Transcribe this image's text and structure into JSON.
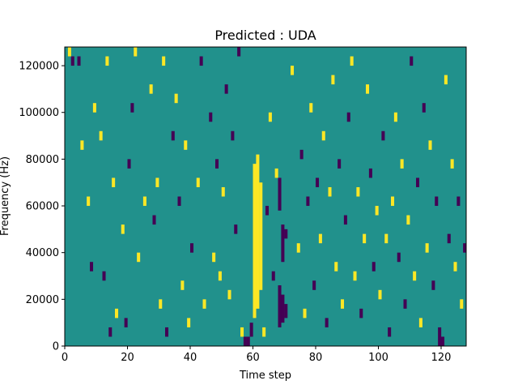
{
  "chart_data": {
    "type": "heatmap",
    "title": "Predicted : UDA",
    "xlabel": "Time step",
    "ylabel": "Frequency (Hz)",
    "xlim": [
      0,
      128
    ],
    "ylim": [
      0,
      128000
    ],
    "x_ticks": [
      {
        "value": 0,
        "label": "0"
      },
      {
        "value": 20,
        "label": "20"
      },
      {
        "value": 40,
        "label": "40"
      },
      {
        "value": 60,
        "label": "60"
      },
      {
        "value": 80,
        "label": "80"
      },
      {
        "value": 100,
        "label": "100"
      },
      {
        "value": 120,
        "label": "120"
      }
    ],
    "y_ticks": [
      {
        "value": 0,
        "label": "0"
      },
      {
        "value": 20000,
        "label": "20000"
      },
      {
        "value": 40000,
        "label": "40000"
      },
      {
        "value": 60000,
        "label": "60000"
      },
      {
        "value": 80000,
        "label": "80000"
      },
      {
        "value": 100000,
        "label": "100000"
      },
      {
        "value": 120000,
        "label": "120000"
      }
    ],
    "grid": false,
    "colormap": "viridis",
    "colors": {
      "background": "#21918c",
      "high": "#fde725",
      "low": "#440154"
    },
    "grid_shape": {
      "time_steps": 128,
      "frequency_bins": 128
    },
    "background_value": 0,
    "cells": [
      {
        "t": 60,
        "f0": 12,
        "f1": 78,
        "v": 1
      },
      {
        "t": 61,
        "f0": 16,
        "f1": 82,
        "v": 1
      },
      {
        "t": 62,
        "f0": 24,
        "f1": 70,
        "v": 1
      },
      {
        "t": 63,
        "f0": 4,
        "f1": 8,
        "v": 1
      },
      {
        "t": 56,
        "f0": 4,
        "f1": 8,
        "v": 1
      },
      {
        "t": 58,
        "f0": 0,
        "f1": 4,
        "v": -1
      },
      {
        "t": 59,
        "f0": 4,
        "f1": 10,
        "v": -1
      },
      {
        "t": 57,
        "f0": 0,
        "f1": 4,
        "v": -1
      },
      {
        "t": 68,
        "f0": 8,
        "f1": 26,
        "v": -1
      },
      {
        "t": 69,
        "f0": 10,
        "f1": 22,
        "v": -1
      },
      {
        "t": 70,
        "f0": 12,
        "f1": 18,
        "v": -1
      },
      {
        "t": 68,
        "f0": 58,
        "f1": 72,
        "v": -1
      },
      {
        "t": 69,
        "f0": 36,
        "f1": 52,
        "v": -1
      },
      {
        "t": 70,
        "f0": 46,
        "f1": 50,
        "v": -1
      },
      {
        "t": 1,
        "f0": 124,
        "f1": 128,
        "v": 1
      },
      {
        "t": 2,
        "f0": 120,
        "f1": 124,
        "v": -1
      },
      {
        "t": 4,
        "f0": 120,
        "f1": 124,
        "v": -1
      },
      {
        "t": 5,
        "f0": 84,
        "f1": 88,
        "v": 1
      },
      {
        "t": 7,
        "f0": 60,
        "f1": 64,
        "v": 1
      },
      {
        "t": 8,
        "f0": 32,
        "f1": 36,
        "v": -1
      },
      {
        "t": 9,
        "f0": 100,
        "f1": 104,
        "v": 1
      },
      {
        "t": 11,
        "f0": 88,
        "f1": 92,
        "v": 1
      },
      {
        "t": 12,
        "f0": 28,
        "f1": 32,
        "v": -1
      },
      {
        "t": 13,
        "f0": 120,
        "f1": 124,
        "v": 1
      },
      {
        "t": 14,
        "f0": 4,
        "f1": 8,
        "v": -1
      },
      {
        "t": 15,
        "f0": 68,
        "f1": 72,
        "v": 1
      },
      {
        "t": 16,
        "f0": 12,
        "f1": 16,
        "v": 1
      },
      {
        "t": 18,
        "f0": 48,
        "f1": 52,
        "v": 1
      },
      {
        "t": 19,
        "f0": 8,
        "f1": 12,
        "v": -1
      },
      {
        "t": 20,
        "f0": 76,
        "f1": 80,
        "v": -1
      },
      {
        "t": 21,
        "f0": 100,
        "f1": 104,
        "v": -1
      },
      {
        "t": 22,
        "f0": 124,
        "f1": 128,
        "v": 1
      },
      {
        "t": 23,
        "f0": 36,
        "f1": 40,
        "v": 1
      },
      {
        "t": 25,
        "f0": 60,
        "f1": 64,
        "v": 1
      },
      {
        "t": 27,
        "f0": 108,
        "f1": 112,
        "v": 1
      },
      {
        "t": 28,
        "f0": 52,
        "f1": 56,
        "v": -1
      },
      {
        "t": 29,
        "f0": 68,
        "f1": 72,
        "v": 1
      },
      {
        "t": 30,
        "f0": 16,
        "f1": 20,
        "v": 1
      },
      {
        "t": 31,
        "f0": 120,
        "f1": 124,
        "v": 1
      },
      {
        "t": 32,
        "f0": 4,
        "f1": 8,
        "v": -1
      },
      {
        "t": 34,
        "f0": 88,
        "f1": 92,
        "v": -1
      },
      {
        "t": 35,
        "f0": 104,
        "f1": 108,
        "v": 1
      },
      {
        "t": 36,
        "f0": 60,
        "f1": 64,
        "v": -1
      },
      {
        "t": 37,
        "f0": 24,
        "f1": 28,
        "v": 1
      },
      {
        "t": 38,
        "f0": 84,
        "f1": 88,
        "v": 1
      },
      {
        "t": 39,
        "f0": 8,
        "f1": 12,
        "v": 1
      },
      {
        "t": 40,
        "f0": 40,
        "f1": 44,
        "v": -1
      },
      {
        "t": 42,
        "f0": 68,
        "f1": 72,
        "v": 1
      },
      {
        "t": 43,
        "f0": 120,
        "f1": 124,
        "v": -1
      },
      {
        "t": 44,
        "f0": 16,
        "f1": 20,
        "v": 1
      },
      {
        "t": 46,
        "f0": 96,
        "f1": 100,
        "v": -1
      },
      {
        "t": 47,
        "f0": 36,
        "f1": 40,
        "v": 1
      },
      {
        "t": 48,
        "f0": 76,
        "f1": 80,
        "v": -1
      },
      {
        "t": 49,
        "f0": 28,
        "f1": 32,
        "v": 1
      },
      {
        "t": 50,
        "f0": 64,
        "f1": 68,
        "v": 1
      },
      {
        "t": 51,
        "f0": 108,
        "f1": 112,
        "v": -1
      },
      {
        "t": 52,
        "f0": 20,
        "f1": 24,
        "v": 1
      },
      {
        "t": 53,
        "f0": 88,
        "f1": 92,
        "v": -1
      },
      {
        "t": 54,
        "f0": 48,
        "f1": 52,
        "v": -1
      },
      {
        "t": 55,
        "f0": 124,
        "f1": 128,
        "v": -1
      },
      {
        "t": 64,
        "f0": 56,
        "f1": 60,
        "v": -1
      },
      {
        "t": 65,
        "f0": 96,
        "f1": 100,
        "v": 1
      },
      {
        "t": 66,
        "f0": 28,
        "f1": 32,
        "v": -1
      },
      {
        "t": 67,
        "f0": 72,
        "f1": 76,
        "v": 1
      },
      {
        "t": 72,
        "f0": 116,
        "f1": 120,
        "v": 1
      },
      {
        "t": 74,
        "f0": 40,
        "f1": 44,
        "v": 1
      },
      {
        "t": 75,
        "f0": 80,
        "f1": 84,
        "v": -1
      },
      {
        "t": 76,
        "f0": 12,
        "f1": 16,
        "v": 1
      },
      {
        "t": 77,
        "f0": 60,
        "f1": 64,
        "v": -1
      },
      {
        "t": 78,
        "f0": 100,
        "f1": 104,
        "v": 1
      },
      {
        "t": 79,
        "f0": 24,
        "f1": 28,
        "v": -1
      },
      {
        "t": 80,
        "f0": 68,
        "f1": 72,
        "v": -1
      },
      {
        "t": 81,
        "f0": 44,
        "f1": 48,
        "v": 1
      },
      {
        "t": 82,
        "f0": 88,
        "f1": 92,
        "v": 1
      },
      {
        "t": 83,
        "f0": 8,
        "f1": 12,
        "v": -1
      },
      {
        "t": 84,
        "f0": 64,
        "f1": 68,
        "v": 1
      },
      {
        "t": 85,
        "f0": 112,
        "f1": 116,
        "v": 1
      },
      {
        "t": 86,
        "f0": 32,
        "f1": 36,
        "v": 1
      },
      {
        "t": 87,
        "f0": 76,
        "f1": 80,
        "v": -1
      },
      {
        "t": 88,
        "f0": 16,
        "f1": 20,
        "v": 1
      },
      {
        "t": 89,
        "f0": 52,
        "f1": 56,
        "v": -1
      },
      {
        "t": 90,
        "f0": 96,
        "f1": 100,
        "v": -1
      },
      {
        "t": 91,
        "f0": 120,
        "f1": 124,
        "v": 1
      },
      {
        "t": 92,
        "f0": 28,
        "f1": 32,
        "v": 1
      },
      {
        "t": 93,
        "f0": 64,
        "f1": 68,
        "v": 1
      },
      {
        "t": 94,
        "f0": 12,
        "f1": 16,
        "v": -1
      },
      {
        "t": 95,
        "f0": 44,
        "f1": 48,
        "v": 1
      },
      {
        "t": 96,
        "f0": 108,
        "f1": 112,
        "v": 1
      },
      {
        "t": 97,
        "f0": 72,
        "f1": 76,
        "v": -1
      },
      {
        "t": 98,
        "f0": 32,
        "f1": 36,
        "v": -1
      },
      {
        "t": 99,
        "f0": 56,
        "f1": 60,
        "v": 1
      },
      {
        "t": 100,
        "f0": 20,
        "f1": 24,
        "v": 1
      },
      {
        "t": 101,
        "f0": 88,
        "f1": 92,
        "v": -1
      },
      {
        "t": 102,
        "f0": 44,
        "f1": 48,
        "v": 1
      },
      {
        "t": 103,
        "f0": 4,
        "f1": 8,
        "v": -1
      },
      {
        "t": 104,
        "f0": 60,
        "f1": 64,
        "v": 1
      },
      {
        "t": 105,
        "f0": 96,
        "f1": 100,
        "v": 1
      },
      {
        "t": 106,
        "f0": 36,
        "f1": 40,
        "v": -1
      },
      {
        "t": 107,
        "f0": 76,
        "f1": 80,
        "v": 1
      },
      {
        "t": 108,
        "f0": 16,
        "f1": 20,
        "v": -1
      },
      {
        "t": 109,
        "f0": 52,
        "f1": 56,
        "v": 1
      },
      {
        "t": 110,
        "f0": 120,
        "f1": 124,
        "v": -1
      },
      {
        "t": 111,
        "f0": 28,
        "f1": 32,
        "v": 1
      },
      {
        "t": 112,
        "f0": 68,
        "f1": 72,
        "v": -1
      },
      {
        "t": 113,
        "f0": 8,
        "f1": 12,
        "v": 1
      },
      {
        "t": 114,
        "f0": 100,
        "f1": 104,
        "v": -1
      },
      {
        "t": 115,
        "f0": 40,
        "f1": 44,
        "v": 1
      },
      {
        "t": 116,
        "f0": 84,
        "f1": 88,
        "v": 1
      },
      {
        "t": 117,
        "f0": 24,
        "f1": 28,
        "v": -1
      },
      {
        "t": 118,
        "f0": 60,
        "f1": 64,
        "v": -1
      },
      {
        "t": 119,
        "f0": 0,
        "f1": 8,
        "v": -1
      },
      {
        "t": 120,
        "f0": 0,
        "f1": 4,
        "v": -1
      },
      {
        "t": 121,
        "f0": 112,
        "f1": 116,
        "v": 1
      },
      {
        "t": 122,
        "f0": 44,
        "f1": 48,
        "v": -1
      },
      {
        "t": 123,
        "f0": 76,
        "f1": 80,
        "v": 1
      },
      {
        "t": 124,
        "f0": 32,
        "f1": 36,
        "v": 1
      },
      {
        "t": 125,
        "f0": 60,
        "f1": 64,
        "v": -1
      },
      {
        "t": 126,
        "f0": 16,
        "f1": 20,
        "v": 1
      },
      {
        "t": 127,
        "f0": 40,
        "f1": 44,
        "v": -1
      }
    ]
  }
}
